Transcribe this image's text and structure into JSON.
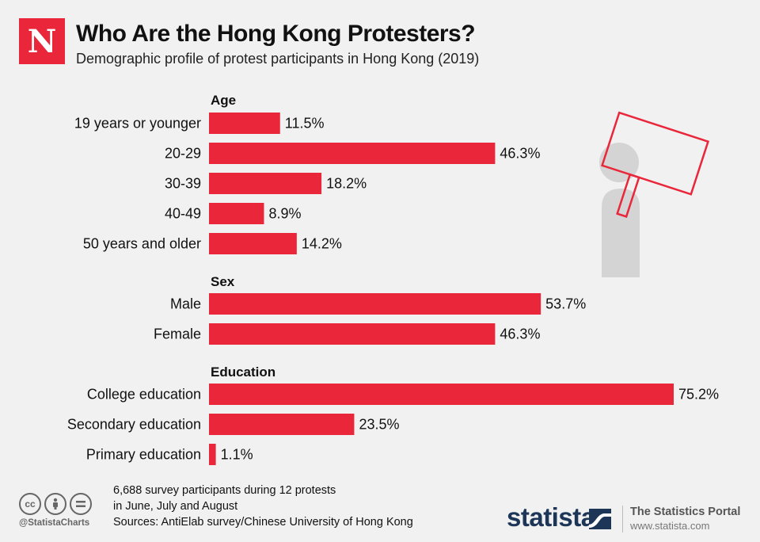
{
  "header": {
    "logo_letter": "N",
    "title": "Who Are the Hong Kong Protesters?",
    "subtitle": "Demographic profile of protest participants in Hong Kong (2019)"
  },
  "chart_data": {
    "type": "bar",
    "orientation": "horizontal",
    "title": "Who Are the Hong Kong Protesters?",
    "subtitle": "Demographic profile of protest participants in Hong Kong (2019)",
    "unit": "%",
    "xlim": [
      0,
      75.2
    ],
    "bar_color": "#e9263a",
    "groups": [
      {
        "name": "Age",
        "categories": [
          "19 years or younger",
          "20-29",
          "30-39",
          "40-49",
          "50 years and older"
        ],
        "values": [
          11.5,
          46.3,
          18.2,
          8.9,
          14.2
        ]
      },
      {
        "name": "Sex",
        "categories": [
          "Male",
          "Female"
        ],
        "values": [
          53.7,
          46.3
        ]
      },
      {
        "name": "Education",
        "categories": [
          "College education",
          "Secondary education",
          "Primary education"
        ],
        "values": [
          75.2,
          23.5,
          1.1
        ]
      }
    ]
  },
  "footer": {
    "note_line1": "6,688 survey participants during 12 protests",
    "note_line2": "in June, July and August",
    "sources": "Sources: AntiElab survey/Chinese University of Hong Kong",
    "handle": "@StatistaCharts",
    "brand": "statista",
    "portal": "The Statistics Portal",
    "site": "www.statista.com",
    "cc_icons": [
      "cc-icon",
      "by-icon",
      "nd-icon"
    ]
  },
  "colors": {
    "accent": "#e9263a",
    "background": "#f1f1f1",
    "brand": "#1d3557",
    "illustration_gray": "#d4d4d4"
  }
}
